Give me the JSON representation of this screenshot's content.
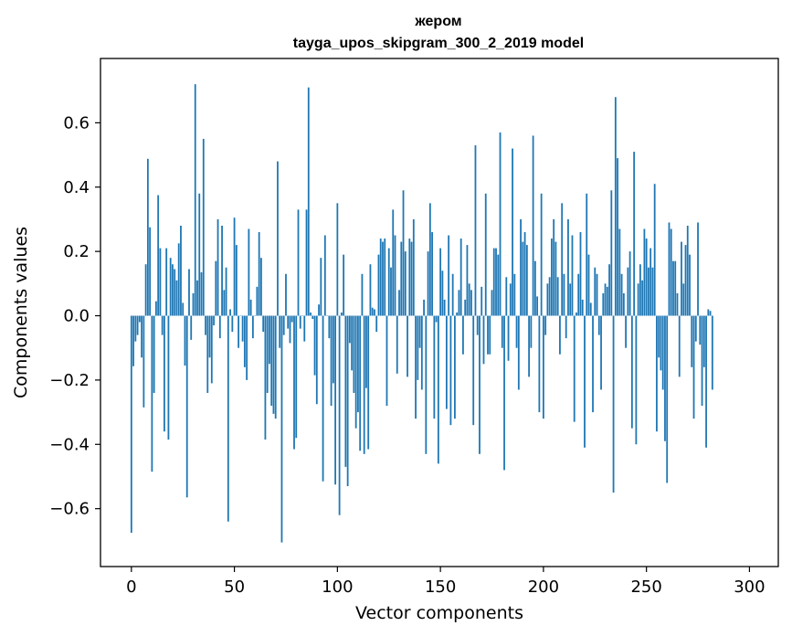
{
  "chart_data": {
    "type": "bar",
    "title": "жером",
    "subtitle": "tayga_upos_skipgram_300_2_2019 model",
    "xlabel": "Vector components",
    "ylabel": "Components values",
    "xlim": [
      -15,
      314
    ],
    "ylim": [
      -0.78,
      0.8
    ],
    "x_ticks": [
      0,
      50,
      100,
      150,
      200,
      250,
      300
    ],
    "x_tick_labels": [
      "0",
      "50",
      "100",
      "150",
      "200",
      "250",
      "300"
    ],
    "y_ticks": [
      -0.6,
      -0.4,
      -0.2,
      0.0,
      0.2,
      0.4,
      0.6
    ],
    "y_tick_labels": [
      "−0.6",
      "−0.4",
      "−0.2",
      "0.0",
      "0.2",
      "0.4",
      "0.6"
    ],
    "bar_color": "#1f77b4",
    "grid": false,
    "values": [
      -0.675,
      -0.157,
      -0.08,
      -0.06,
      -0.02,
      -0.13,
      -0.285,
      0.16,
      0.488,
      0.275,
      -0.485,
      -0.24,
      0.045,
      0.375,
      0.21,
      -0.06,
      -0.36,
      0.21,
      -0.385,
      0.18,
      0.16,
      0.145,
      0.11,
      0.225,
      0.28,
      0.04,
      -0.155,
      -0.565,
      0.145,
      -0.075,
      0.07,
      0.72,
      0.11,
      0.38,
      0.135,
      0.55,
      -0.06,
      -0.24,
      -0.13,
      -0.21,
      -0.03,
      0.17,
      0.3,
      -0.07,
      0.28,
      0.08,
      0.15,
      -0.64,
      0.02,
      -0.05,
      0.305,
      0.22,
      -0.1,
      0.0,
      -0.08,
      -0.16,
      -0.2,
      0.27,
      0.05,
      -0.07,
      0.0,
      0.09,
      0.26,
      0.18,
      -0.05,
      -0.385,
      -0.24,
      -0.15,
      -0.28,
      -0.305,
      -0.32,
      0.48,
      -0.1,
      -0.705,
      -0.06,
      0.13,
      -0.04,
      -0.085,
      -0.02,
      -0.415,
      -0.38,
      0.33,
      -0.04,
      0.0,
      -0.08,
      0.33,
      0.71,
      0.01,
      -0.01,
      -0.185,
      -0.275,
      0.035,
      0.18,
      -0.515,
      0.25,
      0.0,
      -0.07,
      -0.28,
      -0.21,
      -0.525,
      0.35,
      -0.62,
      0.01,
      0.19,
      -0.47,
      -0.53,
      -0.085,
      -0.17,
      -0.24,
      -0.35,
      -0.3,
      -0.42,
      0.13,
      -0.43,
      -0.225,
      -0.415,
      0.16,
      0.025,
      0.02,
      -0.05,
      0.19,
      0.24,
      0.23,
      0.24,
      -0.28,
      0.21,
      0.15,
      0.33,
      0.25,
      -0.18,
      0.08,
      0.23,
      0.39,
      0.2,
      -0.19,
      0.24,
      0.23,
      0.3,
      -0.32,
      -0.2,
      -0.1,
      -0.23,
      0.05,
      -0.43,
      0.2,
      0.35,
      0.26,
      -0.32,
      -0.02,
      -0.46,
      0.21,
      0.14,
      0.05,
      -0.29,
      0.25,
      -0.34,
      0.13,
      -0.32,
      0.01,
      0.08,
      0.24,
      -0.12,
      0.05,
      0.22,
      0.1,
      0.08,
      -0.34,
      0.53,
      -0.06,
      -0.43,
      0.09,
      -0.15,
      0.38,
      -0.12,
      -0.12,
      0.08,
      0.21,
      0.21,
      0.19,
      0.57,
      -0.1,
      -0.48,
      0.12,
      -0.14,
      0.1,
      0.52,
      0.13,
      -0.1,
      -0.23,
      0.3,
      0.23,
      0.26,
      0.22,
      -0.19,
      -0.1,
      0.56,
      0.17,
      0.06,
      -0.3,
      0.38,
      -0.32,
      -0.06,
      0.1,
      0.12,
      0.24,
      0.3,
      0.23,
      0.12,
      -0.12,
      0.35,
      0.13,
      -0.07,
      0.3,
      0.1,
      0.25,
      -0.33,
      0.01,
      0.13,
      0.26,
      0.05,
      -0.41,
      0.38,
      0.19,
      0.04,
      -0.3,
      0.15,
      0.13,
      -0.06,
      -0.23,
      0.07,
      0.1,
      0.09,
      0.16,
      0.39,
      -0.55,
      0.68,
      0.49,
      0.27,
      0.13,
      0.07,
      -0.1,
      0.15,
      0.2,
      -0.35,
      0.51,
      -0.4,
      0.1,
      0.16,
      0.11,
      0.27,
      0.24,
      0.15,
      0.21,
      0.15,
      0.41,
      -0.36,
      -0.13,
      -0.17,
      -0.23,
      -0.39,
      -0.52,
      0.29,
      0.27,
      0.17,
      0.17,
      0.07,
      -0.19,
      0.23,
      0.1,
      0.22,
      0.28,
      0.19,
      -0.16,
      -0.32,
      -0.08,
      0.29,
      -0.09,
      -0.28,
      -0.16,
      -0.41,
      0.02,
      0.015,
      -0.23
    ]
  }
}
